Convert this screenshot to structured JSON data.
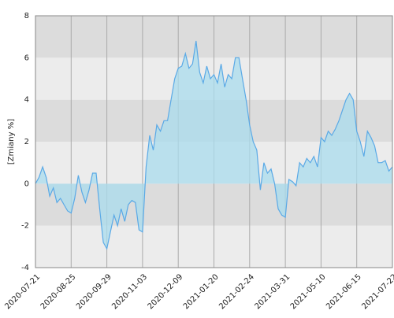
{
  "chart_data": {
    "type": "area",
    "y_label": "[Zmiany %]",
    "categories": [
      "2020-07-21",
      null,
      null,
      null,
      null,
      null,
      null,
      null,
      null,
      null,
      "2020-08-25",
      null,
      null,
      null,
      null,
      null,
      null,
      null,
      null,
      null,
      "2020-09-29",
      null,
      null,
      null,
      null,
      null,
      null,
      null,
      null,
      null,
      "2020-11-03",
      null,
      null,
      null,
      null,
      null,
      null,
      null,
      null,
      null,
      "2020-12-09",
      null,
      null,
      null,
      null,
      null,
      null,
      null,
      null,
      null,
      "2021-01-20",
      null,
      null,
      null,
      null,
      null,
      null,
      null,
      null,
      null,
      "2021-02-24",
      null,
      null,
      null,
      null,
      null,
      null,
      null,
      null,
      null,
      "2021-03-31",
      null,
      null,
      null,
      null,
      null,
      null,
      null,
      null,
      null,
      "2021-05-10",
      null,
      null,
      null,
      null,
      null,
      null,
      null,
      null,
      null,
      "2021-06-15",
      null,
      null,
      null,
      null,
      null,
      null,
      null,
      null,
      null,
      "2021-07-22"
    ],
    "series": [
      {
        "color": "#5aa9e6",
        "fill": "#a9dcee",
        "values": [
          0.0,
          0.3,
          0.8,
          0.3,
          -0.6,
          -0.2,
          -0.9,
          -0.7,
          -1.0,
          -1.3,
          -1.4,
          -0.7,
          0.4,
          -0.4,
          -0.9,
          -0.3,
          0.5,
          0.5,
          -1.2,
          -2.8,
          -3.1,
          -2.3,
          -1.5,
          -2.0,
          -1.2,
          -1.8,
          -1.0,
          -0.8,
          -0.9,
          -2.2,
          -2.3,
          0.8,
          2.3,
          1.6,
          2.8,
          2.5,
          3.0,
          3.0,
          4.0,
          5.0,
          5.5,
          5.6,
          6.2,
          5.5,
          5.7,
          6.8,
          5.3,
          4.8,
          5.6,
          5.0,
          5.2,
          4.8,
          5.7,
          4.6,
          5.2,
          5.0,
          6.0,
          6.0,
          5.0,
          4.0,
          2.8,
          2.0,
          1.6,
          -0.3,
          1.0,
          0.5,
          0.7,
          0.0,
          -1.2,
          -1.5,
          -1.6,
          0.2,
          0.1,
          -0.1,
          1.0,
          0.8,
          1.2,
          1.0,
          1.3,
          0.8,
          2.2,
          2.0,
          2.5,
          2.3,
          2.6,
          3.0,
          3.5,
          4.0,
          4.3,
          4.0,
          2.5,
          2.0,
          1.3,
          2.5,
          2.2,
          1.8,
          1.0,
          1.0,
          1.1,
          0.6,
          0.8
        ]
      }
    ],
    "ylim": [
      -4,
      8
    ],
    "yticks": [
      -4,
      -2,
      0,
      2,
      4,
      6,
      8
    ],
    "band_colors": [
      "#ececec",
      "#dcdcdc"
    ],
    "grid": true
  }
}
